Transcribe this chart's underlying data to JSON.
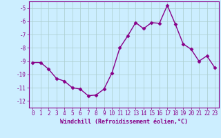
{
  "x": [
    0,
    1,
    2,
    3,
    4,
    5,
    6,
    7,
    8,
    9,
    10,
    11,
    12,
    13,
    14,
    15,
    16,
    17,
    18,
    19,
    20,
    21,
    22,
    23
  ],
  "y": [
    -9.1,
    -9.1,
    -9.6,
    -10.3,
    -10.5,
    -11.0,
    -11.1,
    -11.6,
    -11.55,
    -11.1,
    -9.9,
    -8.0,
    -7.1,
    -6.1,
    -6.55,
    -6.1,
    -6.15,
    -4.8,
    -6.2,
    -7.7,
    -8.1,
    -9.0,
    -8.6,
    -9.5
  ],
  "line_color": "#880088",
  "marker": "D",
  "markersize": 2.5,
  "linewidth": 1.0,
  "bg_color": "#cceeff",
  "grid_color": "#aacccc",
  "xlabel": "Windchill (Refroidissement éolien,°C)",
  "xlabel_fontsize": 6.0,
  "xlim": [
    -0.5,
    23.5
  ],
  "ylim": [
    -12.5,
    -4.5
  ],
  "yticks": [
    -12,
    -11,
    -10,
    -9,
    -8,
    -7,
    -6,
    -5
  ],
  "xticks": [
    0,
    1,
    2,
    3,
    4,
    5,
    6,
    7,
    8,
    9,
    10,
    11,
    12,
    13,
    14,
    15,
    16,
    17,
    18,
    19,
    20,
    21,
    22,
    23
  ],
  "tick_color": "#880088",
  "tick_fontsize": 5.5,
  "grid_linewidth": 0.5
}
